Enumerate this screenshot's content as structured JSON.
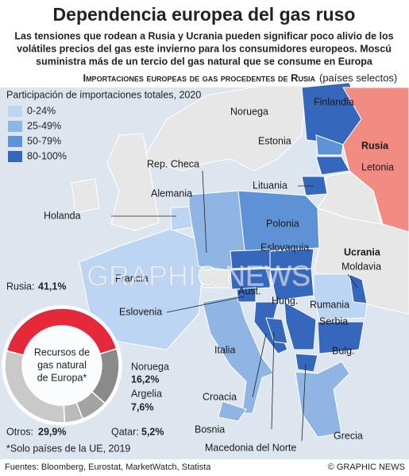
{
  "header": {
    "title": "Dependencia europea del gas ruso",
    "subtitle": [
      "Las tensiones que rodean a Rusia y Ucrania pueden significar poco alivio de los",
      "volátiles precios del gas este invierno para los consumidores europeos. Moscú",
      "suministra más de un tercio del gas natural que se consume en Europa"
    ]
  },
  "section": {
    "title": "Importaciones europeas de gas procedentes de Rusia",
    "note": "(países selectos)"
  },
  "legend": {
    "title": "Participación de importaciones totales, 2020",
    "items": [
      {
        "label": "0-24%",
        "color": "#bcd5f2"
      },
      {
        "label": "25-49%",
        "color": "#8fb5e5"
      },
      {
        "label": "50-79%",
        "color": "#5e92d6"
      },
      {
        "label": "80-100%",
        "color": "#3568bd"
      }
    ]
  },
  "map": {
    "labels": [
      "Finlandia",
      "Noruega",
      "Estonia",
      "Rusia",
      "Letonia",
      "Rep. Checa",
      "Lituania",
      "Alemania",
      "Holanda",
      "Polonia",
      "Eslovaquia",
      "Ucrania",
      "Moldavia",
      "Francia",
      "Aust.",
      "Hung.",
      "Rumania",
      "Eslovenia",
      "Serbia",
      "Italia",
      "Bulg.",
      "Croacia",
      "Bosnia",
      "Grecia",
      "Macedonia del Norte"
    ],
    "watermark": "GRAPHIC NEWS"
  },
  "chart_data": {
    "type": "donut",
    "center_label": [
      "Recursos de",
      "gas natural",
      "de Europa*"
    ],
    "categories": [
      "Rusia:",
      "Noruega",
      "Argelia",
      "Qatar:",
      "Otros:"
    ],
    "values": [
      41.1,
      16.2,
      7.6,
      5.2,
      29.9
    ],
    "value_labels": [
      "41,1%",
      "16,2%",
      "7,6%",
      "5,2%",
      "29,9%"
    ],
    "colors": [
      "#e5293b",
      "#8a8a8a",
      "#a3a3a3",
      "#bababa",
      "#c9c9c9"
    ]
  },
  "footnote": "*Solo países de la UE, 2019",
  "source": "Fuentes: Bloomberg, Eurostat, MarketWatch, Statista",
  "credit": "© GRAPHIC NEWS"
}
